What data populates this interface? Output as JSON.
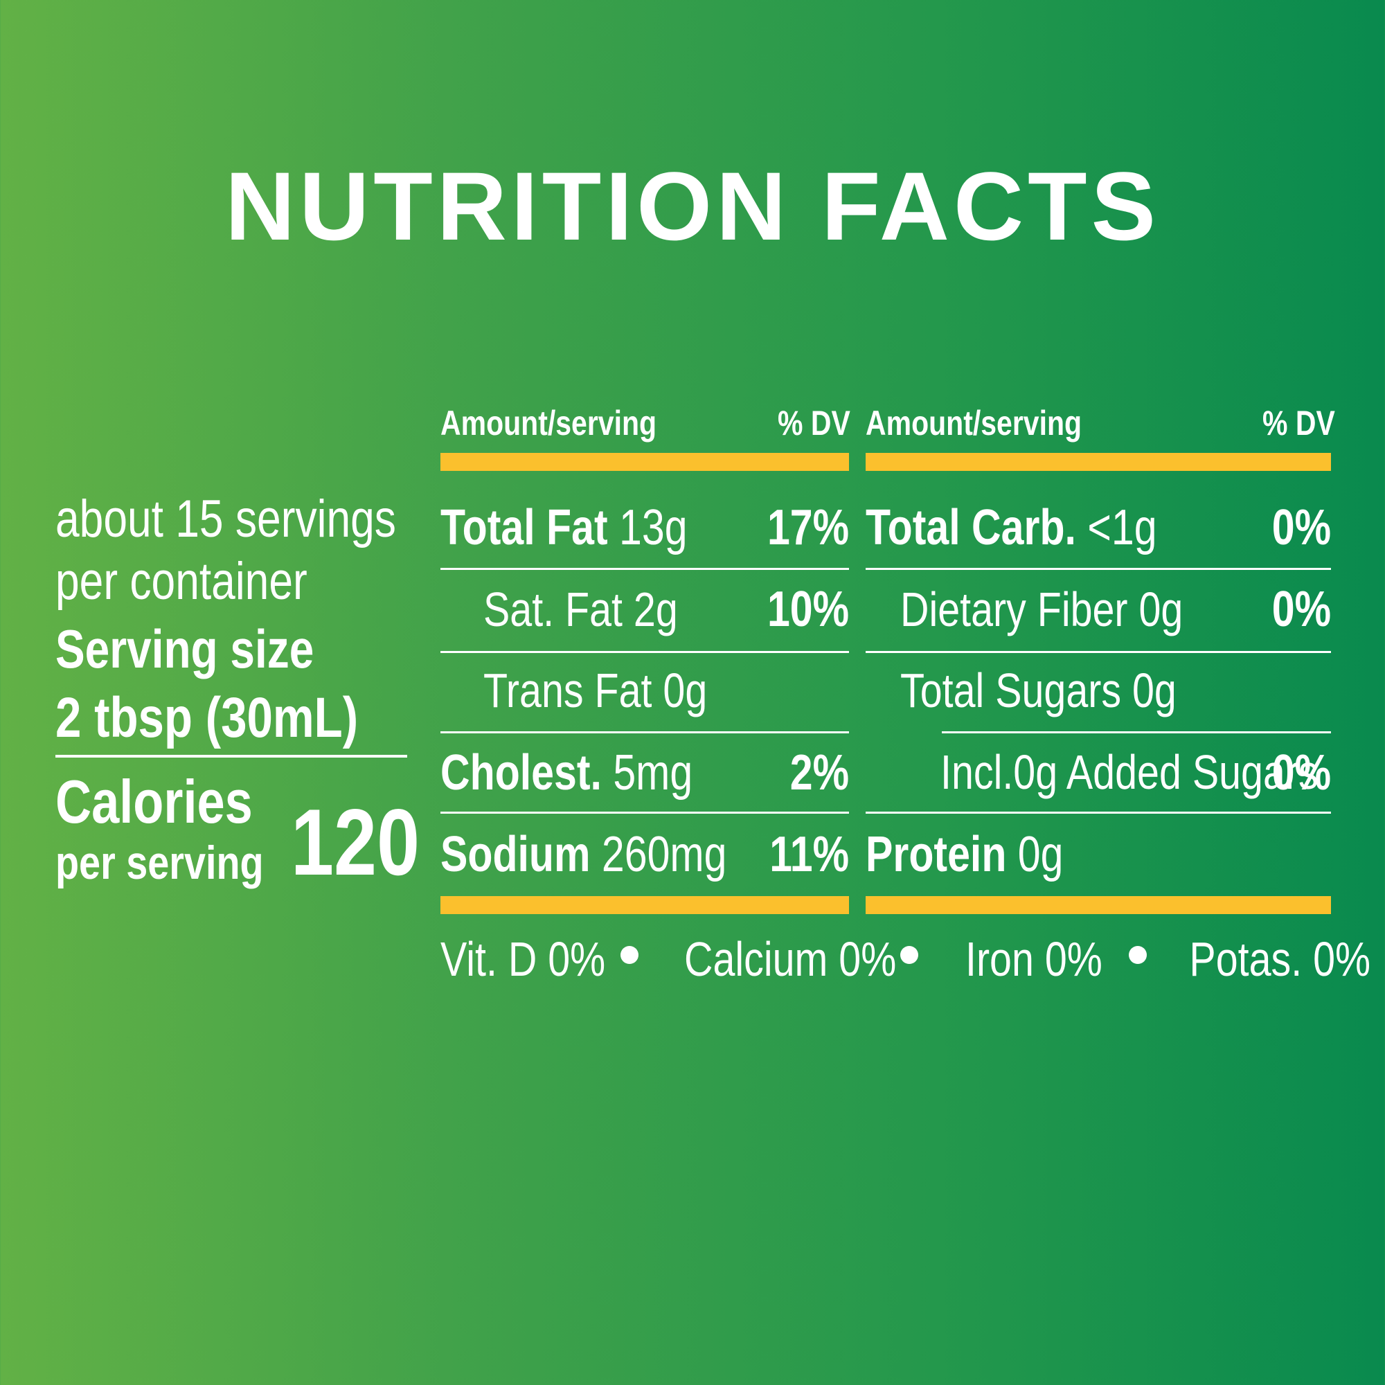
{
  "title": "NUTRITION FACTS",
  "left_panel": {
    "servings_line1": "about 15 servings",
    "servings_line2": "per container",
    "serving_size_label": "Serving size",
    "serving_size_value": "2 tbsp (30mL)",
    "calories_label": "Calories",
    "calories_sub": "per serving",
    "calories_value": "120"
  },
  "table": {
    "header_amount": "Amount/serving",
    "header_dv": "% DV",
    "left_rows": [
      {
        "name": "Total Fat",
        "amount": "13g",
        "dv": "17%"
      },
      {
        "name": "Sat. Fat 2g",
        "dv": "10%"
      },
      {
        "name": "Trans Fat 0g"
      },
      {
        "name": "Cholest.",
        "amount": "5mg",
        "dv": "2%"
      },
      {
        "name": "Sodium",
        "amount": "260mg",
        "dv": "11%"
      }
    ],
    "right_rows": [
      {
        "name": "Total Carb.",
        "amount": "<1g",
        "dv": "0%"
      },
      {
        "name": "Dietary Fiber 0g",
        "dv": "0%"
      },
      {
        "name": "Total Sugars 0g"
      },
      {
        "name": "Incl.0g Added Sugars",
        "dv": "0%"
      },
      {
        "name": "Protein",
        "amount": "0g"
      }
    ]
  },
  "footer": {
    "vitd": "Vit. D 0%",
    "calcium": "Calcium 0%",
    "iron": "Iron 0%",
    "potassium": "Potas. 0%"
  },
  "colors": {
    "background_left": "#62b146",
    "background_right": "#098a4e",
    "accent_bar": "#fbc02d",
    "text": "#ffffff"
  }
}
